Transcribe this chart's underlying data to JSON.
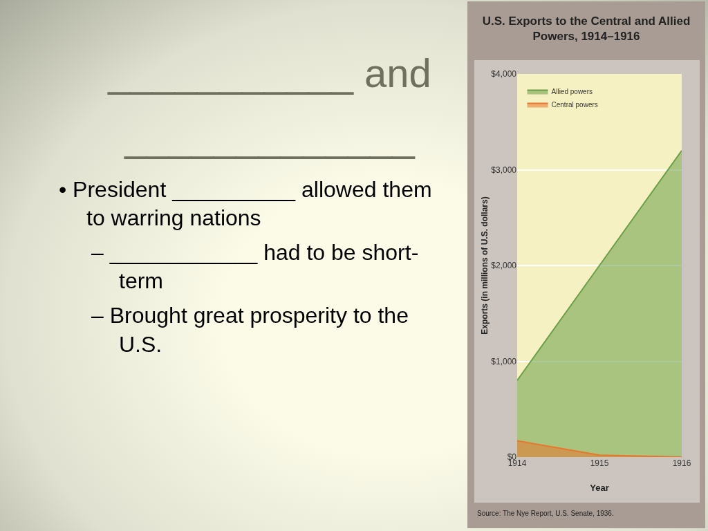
{
  "chart_data": [
    {
      "type": "other",
      "title": "___________ and\n_____________",
      "annotations": [
        "• President __________ allowed them to warring nations",
        "– ____________ had to be short-term",
        "– Brought great prosperity to the U.S."
      ]
    },
    {
      "type": "area",
      "title": "U.S. Exports to the Central and Allied Powers, 1914–1916",
      "xlabel": "Year",
      "ylabel": "Exports (in millions of U.S. dollars)",
      "x": [
        1914,
        1915,
        1916
      ],
      "xlim": [
        1914,
        1916
      ],
      "xticks": [
        1914,
        1915,
        1916
      ],
      "ylim": [
        0,
        4000
      ],
      "yticks": [
        {
          "value": 0,
          "label": "$0"
        },
        {
          "value": 1000,
          "label": "$1,000"
        },
        {
          "value": 2000,
          "label": "$2,000"
        },
        {
          "value": 3000,
          "label": "$3,000"
        },
        {
          "value": 4000,
          "label": "$4,000"
        }
      ],
      "series": [
        {
          "name": "Allied powers",
          "color": "#6a9f48",
          "values": [
            800,
            2000,
            3200
          ]
        },
        {
          "name": "Central powers",
          "color": "#e8772e",
          "values": [
            170,
            20,
            0
          ]
        }
      ],
      "grid": "y",
      "legend": "top left",
      "annotations": [
        "Source: The Nye Report, U.S. Senate, 1936."
      ]
    }
  ]
}
